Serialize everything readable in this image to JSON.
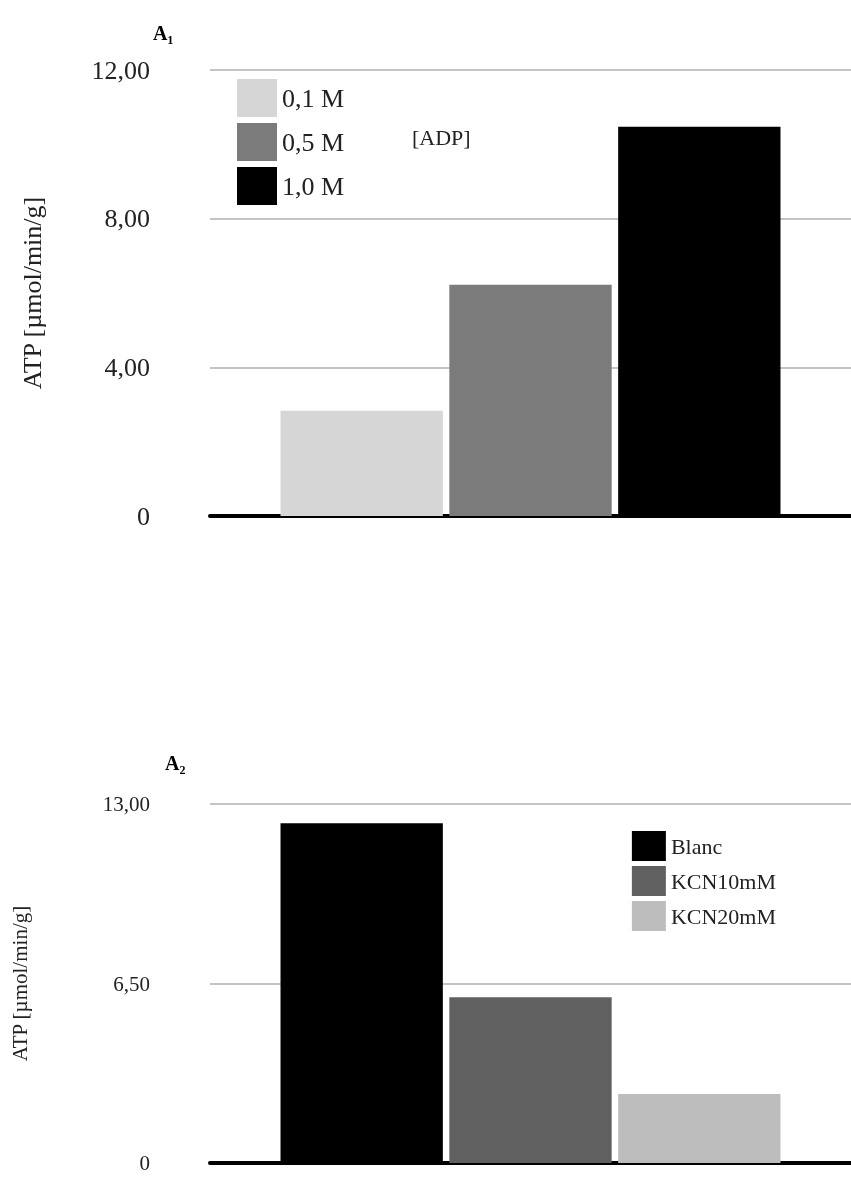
{
  "chart_data": [
    {
      "type": "bar",
      "title": "A₁",
      "ylabel": "ATP [µmol/min/g]",
      "legend_title": "[ADP]",
      "categories": [
        null
      ],
      "series": [
        {
          "name": "0,1 M",
          "color": "#d6d6d6",
          "values": [
            2.83
          ]
        },
        {
          "name": "0,5 M",
          "color": "#7b7b7b",
          "values": [
            6.22
          ]
        },
        {
          "name": "1,0 M",
          "color": "#000000",
          "values": [
            10.47
          ]
        }
      ],
      "ylim": [
        0,
        12
      ],
      "yticks": [
        0,
        {
          "value": 4,
          "label": "4,00"
        },
        {
          "value": 8,
          "label": "8,00"
        },
        {
          "value": 12,
          "label": "12,00"
        }
      ],
      "grid": "y",
      "legend": "top left"
    },
    {
      "type": "bar",
      "title": "A₂",
      "ylabel": "ATP [µmol/min/g]",
      "categories": [
        null
      ],
      "series": [
        {
          "name": "Blanc",
          "color": "#000000",
          "values": [
            12.3
          ]
        },
        {
          "name": "KCN10mM",
          "color": "#606060",
          "values": [
            6.0
          ]
        },
        {
          "name": "KCN20mM",
          "color": "#bdbdbd",
          "values": [
            2.5
          ]
        }
      ],
      "ylim": [
        0,
        13
      ],
      "yticks": [
        0,
        {
          "value": 6.5,
          "label": "6,50"
        },
        {
          "value": 13,
          "label": "13,00"
        }
      ],
      "grid": "y",
      "legend": "top right"
    }
  ]
}
